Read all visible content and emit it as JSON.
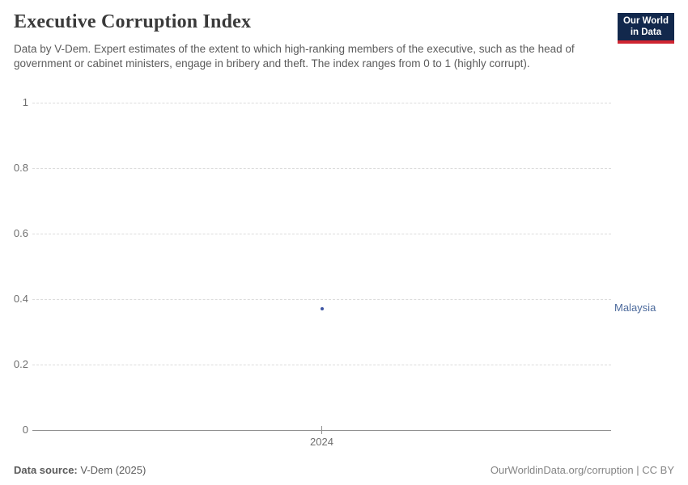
{
  "header": {
    "title": "Executive Corruption Index",
    "subtitle": "Data by V-Dem. Expert estimates of the extent to which high-ranking members of the executive, such as the head of government or cabinet ministers, engage in bribery and theft. The index ranges from 0 to 1 (highly corrupt).",
    "logo": {
      "line1": "Our World",
      "line2": "in Data",
      "bg_color": "#12284c",
      "accent_color": "#cf2531"
    }
  },
  "chart_data": {
    "type": "scatter",
    "title": "Executive Corruption Index",
    "series": [
      {
        "name": "Malaysia",
        "label_color": "#4c6a9c",
        "marker_color": "#3d55a3",
        "points": [
          {
            "x": 2024,
            "y": 0.37
          }
        ]
      }
    ],
    "xticks": [
      "2024"
    ],
    "yticks": [
      1,
      0.8,
      0.6,
      0.4,
      0.2,
      0
    ],
    "ylim": [
      0,
      1
    ],
    "grid": "horizontal dashed gridlines, solid baseline at 0",
    "legend_position": "right of plot, inline entity label"
  },
  "footer": {
    "source_label": "Data source:",
    "source_value": "V-Dem (2025)",
    "attribution": "OurWorldinData.org/corruption | CC BY"
  }
}
